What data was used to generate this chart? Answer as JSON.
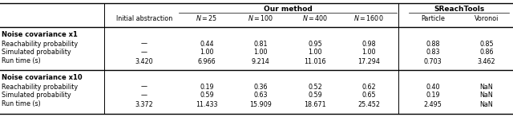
{
  "header_group_labels": [
    "Our method",
    "SReachTools"
  ],
  "header_labels": [
    "Initial abstraction",
    "N = 25",
    "N = 100",
    "N = 400",
    "N = 1600",
    "Particle",
    "Voronoi"
  ],
  "section1_title": "Noise covariance x1",
  "section1_rows": [
    {
      "label": "Reachability probability",
      "values": [
        "—",
        "0.44",
        "0.81",
        "0.95",
        "0.98",
        "0.88",
        "0.85"
      ]
    },
    {
      "label": "Simulated probability",
      "values": [
        "—",
        "1.00",
        "1.00",
        "1.00",
        "1.00",
        "0.83",
        "0.86"
      ]
    },
    {
      "label": "Run time (s)",
      "values": [
        "3.420",
        "6.966",
        "9.214",
        "11.016",
        "17.294",
        "0.703",
        "3.462"
      ]
    }
  ],
  "section2_title": "Noise covariance x10",
  "section2_rows": [
    {
      "label": "Reachability probability",
      "values": [
        "—",
        "0.19",
        "0.36",
        "0.52",
        "0.62",
        "0.40",
        "NaN"
      ]
    },
    {
      "label": "Simulated probability",
      "values": [
        "—",
        "0.59",
        "0.63",
        "0.59",
        "0.65",
        "0.19",
        "NaN"
      ]
    },
    {
      "label": "Run time (s)",
      "values": [
        "3.372",
        "11.433",
        "15.909",
        "18.671",
        "25.452",
        "2.495",
        "NaN"
      ]
    }
  ]
}
